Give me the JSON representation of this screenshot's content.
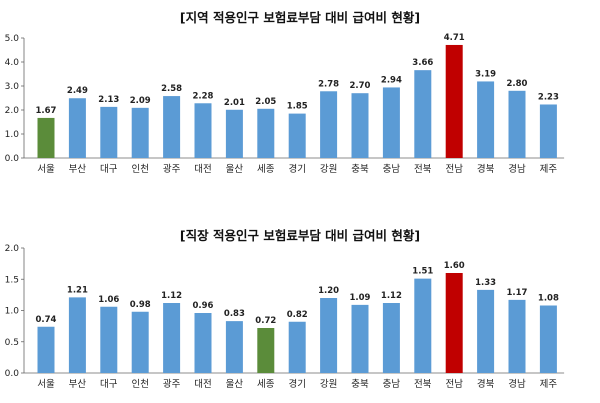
{
  "chart_data": [
    {
      "type": "bar",
      "title": "[지역 적용인구 보험료부담 대비 급여비 현황]",
      "categories": [
        "서울",
        "부산",
        "대구",
        "인천",
        "광주",
        "대전",
        "울산",
        "세종",
        "경기",
        "강원",
        "충북",
        "충남",
        "전북",
        "전남",
        "경북",
        "경남",
        "제주"
      ],
      "values": [
        1.67,
        2.49,
        2.13,
        2.09,
        2.58,
        2.28,
        2.01,
        2.05,
        1.85,
        2.78,
        2.7,
        2.94,
        3.66,
        4.71,
        3.19,
        2.8,
        2.23
      ],
      "value_labels": [
        "1.67",
        "2.49",
        "2.13",
        "2.09",
        "2.58",
        "2.28",
        "2.01",
        "2.05",
        "1.85",
        "2.78",
        "2.70",
        "2.94",
        "3.66",
        "4.71",
        "3.19",
        "2.80",
        "2.23"
      ],
      "highlight": {
        "서울": "#5b8c3a",
        "전남": "#c00000"
      },
      "yticks": [
        "0.0",
        "1.0",
        "2.0",
        "3.0",
        "4.0",
        "5.0"
      ],
      "ylim": [
        0,
        5
      ],
      "grid": false,
      "bar_color": "#5b9bd5"
    },
    {
      "type": "bar",
      "title": "[직장 적용인구 보험료부담 대비 급여비 현황]",
      "categories": [
        "서울",
        "부산",
        "대구",
        "인천",
        "광주",
        "대전",
        "울산",
        "세종",
        "경기",
        "강원",
        "충북",
        "충남",
        "전북",
        "전남",
        "경북",
        "경남",
        "제주"
      ],
      "values": [
        0.74,
        1.21,
        1.06,
        0.98,
        1.12,
        0.96,
        0.83,
        0.72,
        0.82,
        1.2,
        1.09,
        1.12,
        1.51,
        1.6,
        1.33,
        1.17,
        1.08
      ],
      "value_labels": [
        "0.74",
        "1.21",
        "1.06",
        "0.98",
        "1.12",
        "0.96",
        "0.83",
        "0.72",
        "0.82",
        "1.20",
        "1.09",
        "1.12",
        "1.51",
        "1.60",
        "1.33",
        "1.17",
        "1.08"
      ],
      "highlight": {
        "세종": "#5b8c3a",
        "전남": "#c00000"
      },
      "yticks": [
        "0.0",
        "0.5",
        "1.0",
        "1.5",
        "2.0"
      ],
      "ylim": [
        0,
        2
      ],
      "grid": false,
      "bar_color": "#5b9bd5"
    }
  ]
}
